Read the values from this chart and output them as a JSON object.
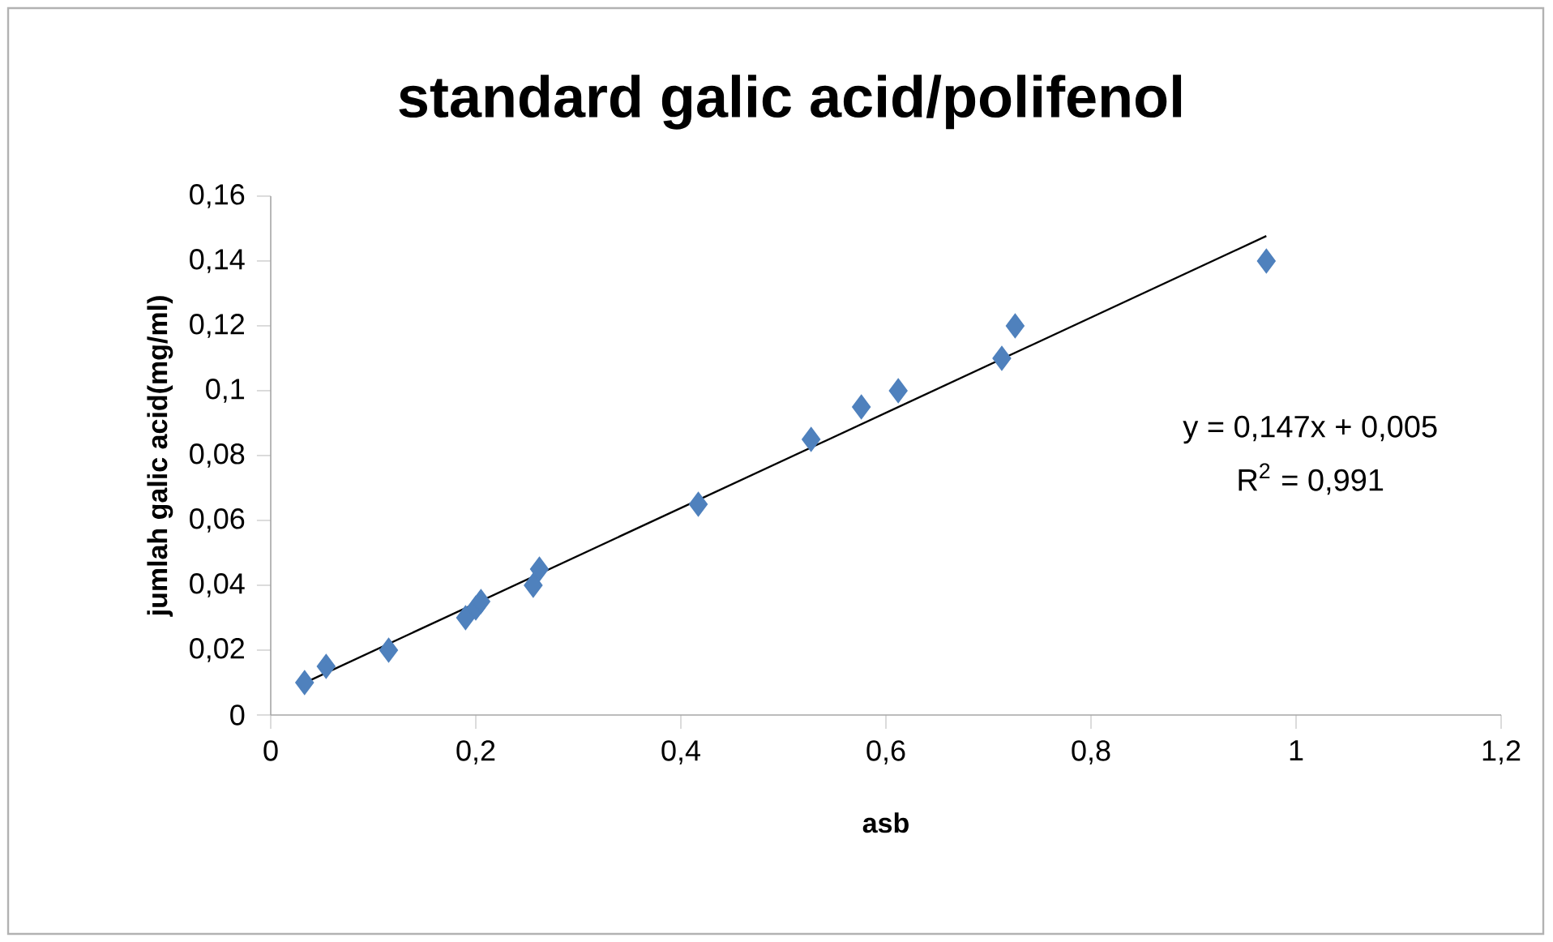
{
  "chart_data": {
    "type": "scatter",
    "title": "standard galic acid/polifenol",
    "xlabel": "asb",
    "ylabel": "jumlah galic acid(mg/ml)",
    "xlim": [
      0,
      1.2
    ],
    "xticks": [
      0,
      {
        "value": 0.2,
        "label": "0,2"
      },
      {
        "value": 0.4,
        "label": "0,4"
      },
      {
        "value": 0.6,
        "label": "0,6"
      },
      {
        "value": 0.8,
        "label": "0,8"
      },
      1,
      {
        "value": 1.2,
        "label": "1,2"
      }
    ],
    "ylim": [
      0,
      0.16
    ],
    "yticks": [
      0,
      {
        "value": 0.02,
        "label": "0,02"
      },
      {
        "value": 0.04,
        "label": "0,04"
      },
      {
        "value": 0.06,
        "label": "0,06"
      },
      {
        "value": 0.08,
        "label": "0,08"
      },
      {
        "value": 0.1,
        "label": "0,1"
      },
      {
        "value": 0.12,
        "label": "0,12"
      },
      {
        "value": 0.14,
        "label": "0,14"
      },
      {
        "value": 0.16,
        "label": "0,16"
      }
    ],
    "series": [
      {
        "color": "#4f81bd",
        "marker": "diamond",
        "x": [
          0.033,
          0.054,
          0.115,
          0.19,
          0.2,
          0.205,
          0.256,
          0.262,
          0.417,
          0.527,
          0.576,
          0.612,
          0.713,
          0.726,
          0.971
        ],
        "values": [
          0.01,
          0.015,
          0.02,
          0.03,
          0.033,
          0.035,
          0.04,
          0.045,
          0.065,
          0.085,
          0.095,
          0.1,
          0.11,
          0.12,
          0.14
        ]
      },
      {
        "type": "line",
        "color": "#000000",
        "marker": "none",
        "x": [
          0.033,
          0.971
        ],
        "values": [
          0.0099,
          0.1477
        ]
      }
    ],
    "annotations": [
      "y = 0,147x + 0,005",
      "R$^{2}$ = 0,991"
    ]
  }
}
